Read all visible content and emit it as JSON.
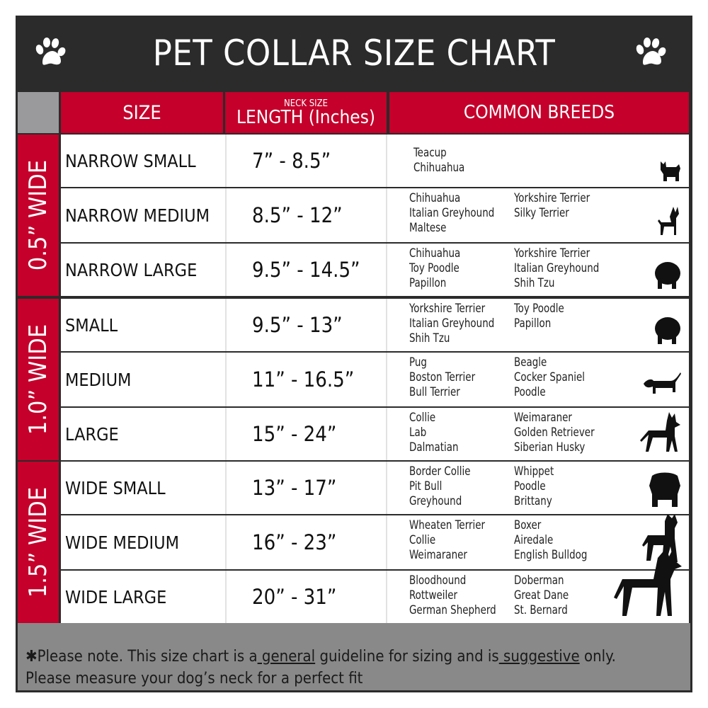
{
  "title": "PET COLLAR SIZE CHART",
  "header": {
    "size": "SIZE",
    "neck_size": "NECK SIZE",
    "length": "LENGTH (Inches)",
    "breeds": "COMMON BREEDS"
  },
  "colors": {
    "red": "#c4002b",
    "dark": "#2b2b2b",
    "grey": "#898989"
  },
  "groups": [
    {
      "label": "0.5” WIDE",
      "rows": [
        {
          "size": "NARROW SMALL",
          "length": "7” - 8.5”",
          "breeds_a": [
            "Teacup",
            "Chihuahua"
          ],
          "breeds_b": [],
          "icon": "yorkie-silhouette-icon"
        },
        {
          "size": "NARROW MEDIUM",
          "length": "8.5” - 12”",
          "breeds_a": [
            "Chihuahua",
            "Italian Greyhound",
            "Maltese"
          ],
          "breeds_b": [
            "Yorkshire Terrier",
            "Silky Terrier"
          ],
          "icon": "chihuahua-silhouette-icon"
        },
        {
          "size": "NARROW LARGE",
          "length": "9.5” - 14.5”",
          "breeds_a": [
            "Chihuahua",
            "Toy Poodle",
            "Papillon"
          ],
          "breeds_b": [
            "Yorkshire Terrier",
            "Italian Greyhound",
            "Shih Tzu"
          ],
          "icon": "pomeranian-silhouette-icon"
        }
      ]
    },
    {
      "label": "1.0” WIDE",
      "rows": [
        {
          "size": "SMALL",
          "length": "9.5” - 13”",
          "breeds_a": [
            "Yorkshire Terrier",
            "Italian Greyhound",
            "Shih Tzu"
          ],
          "breeds_b": [
            "Toy Poodle",
            "Papillon"
          ],
          "icon": "pomeranian-silhouette-icon"
        },
        {
          "size": "MEDIUM",
          "length": "11” - 16.5”",
          "breeds_a": [
            "Pug",
            "Boston Terrier",
            "Bull Terrier"
          ],
          "breeds_b": [
            "Beagle",
            "Cocker Spaniel",
            "Poodle"
          ],
          "icon": "dachshund-silhouette-icon"
        },
        {
          "size": "LARGE",
          "length": "15” - 24”",
          "breeds_a": [
            "Collie",
            "Lab",
            "Dalmatian"
          ],
          "breeds_b": [
            "Weimaraner",
            "Golden Retriever",
            "Siberian Husky"
          ],
          "icon": "shepherd-silhouette-icon"
        }
      ]
    },
    {
      "label": "1.5” WIDE",
      "rows": [
        {
          "size": "WIDE SMALL",
          "length": "13” - 17”",
          "breeds_a": [
            "Border Collie",
            "Pit Bull",
            "Greyhound"
          ],
          "breeds_b": [
            "Whippet",
            "Poodle",
            "Brittany"
          ],
          "icon": "bulldog-silhouette-icon"
        },
        {
          "size": "WIDE MEDIUM",
          "length": "16” - 23”",
          "breeds_a": [
            "Wheaten Terrier",
            "Collie",
            "Weimaraner"
          ],
          "breeds_b": [
            "Boxer",
            "Airedale",
            "English Bulldog"
          ],
          "icon": "pitbull-silhouette-icon"
        },
        {
          "size": "WIDE LARGE",
          "length": "20” - 31”",
          "breeds_a": [
            "Bloodhound",
            "Rottweiler",
            "German Shepherd"
          ],
          "breeds_b": [
            "Doberman",
            "Great Dane",
            "St. Bernard"
          ],
          "icon": "doberman-silhouette-icon"
        }
      ]
    }
  ],
  "footer": {
    "part1": "✱Please note. This size chart is a",
    "general": " general",
    "part2": " guideline for sizing and is",
    "suggestive": " suggestive",
    "part3": " only.",
    "line2": "Please measure your dog’s neck for a perfect fit"
  }
}
